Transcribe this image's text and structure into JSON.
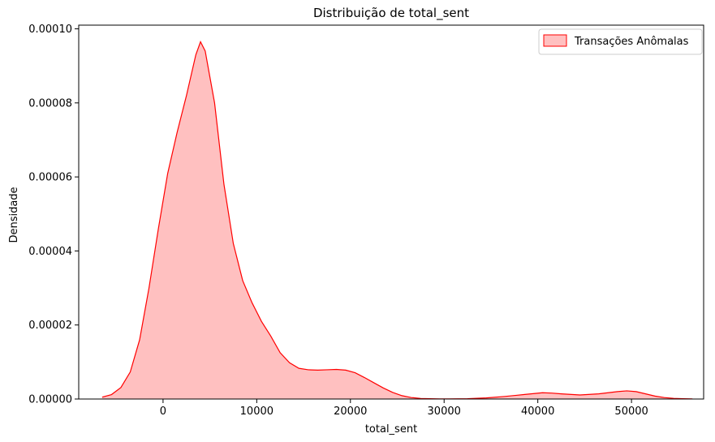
{
  "chart_data": {
    "type": "area",
    "title": "Distribuição de total_sent",
    "xlabel": "total_sent",
    "ylabel": "Densidade",
    "xlim": [
      -9000,
      57700
    ],
    "ylim": [
      0,
      0.000101
    ],
    "xticks": [
      0,
      10000,
      20000,
      30000,
      40000,
      50000
    ],
    "xtick_labels": [
      "0",
      "10000",
      "20000",
      "30000",
      "40000",
      "50000"
    ],
    "yticks": [
      0,
      2e-05,
      4e-05,
      6e-05,
      8e-05,
      0.0001
    ],
    "ytick_labels": [
      "0.00000",
      "0.00002",
      "0.00004",
      "0.00006",
      "0.00008",
      "0.00010"
    ],
    "grid": false,
    "legend_position": "top-right",
    "series": [
      {
        "name": "Transações Anômalas",
        "color": "#ff0000",
        "fill": "#ffc0c0",
        "x": [
          -6500,
          -5500,
          -4500,
          -3500,
          -2500,
          -1500,
          -500,
          500,
          1500,
          2500,
          3500,
          4000,
          4500,
          5500,
          6500,
          7500,
          8500,
          9500,
          10500,
          11500,
          12500,
          13500,
          14500,
          15500,
          16500,
          17500,
          18500,
          19500,
          20500,
          21500,
          22500,
          23500,
          24500,
          25500,
          26500,
          27500,
          28500,
          29500,
          30500,
          32500,
          34500,
          36500,
          38500,
          40500,
          41500,
          42500,
          44500,
          46500,
          48500,
          49500,
          50500,
          51500,
          52500,
          53500,
          54500,
          55500,
          56500
        ],
        "y": [
          5e-07,
          1.2e-06,
          3.1e-06,
          7.3e-06,
          1.6e-05,
          3e-05,
          4.6e-05,
          6.1e-05,
          7.2e-05,
          8.2e-05,
          9.3e-05,
          9.65e-05,
          9.4e-05,
          8e-05,
          5.8e-05,
          4.2e-05,
          3.2e-05,
          2.6e-05,
          2.1e-05,
          1.7e-05,
          1.25e-05,
          9.8e-06,
          8.3e-06,
          7.9e-06,
          7.8e-06,
          7.9e-06,
          8e-06,
          7.8e-06,
          7.1e-06,
          5.8e-06,
          4.4e-06,
          3e-06,
          1.8e-06,
          9e-07,
          4e-07,
          1.5e-07,
          8e-08,
          4e-08,
          4e-08,
          1e-07,
          3e-07,
          7e-07,
          1.2e-06,
          1.7e-06,
          1.6e-06,
          1.4e-06,
          1.1e-06,
          1.4e-06,
          2e-06,
          2.2e-06,
          2e-06,
          1.4e-06,
          8e-07,
          4e-07,
          1.8e-07,
          8e-08,
          3e-08
        ]
      }
    ]
  }
}
